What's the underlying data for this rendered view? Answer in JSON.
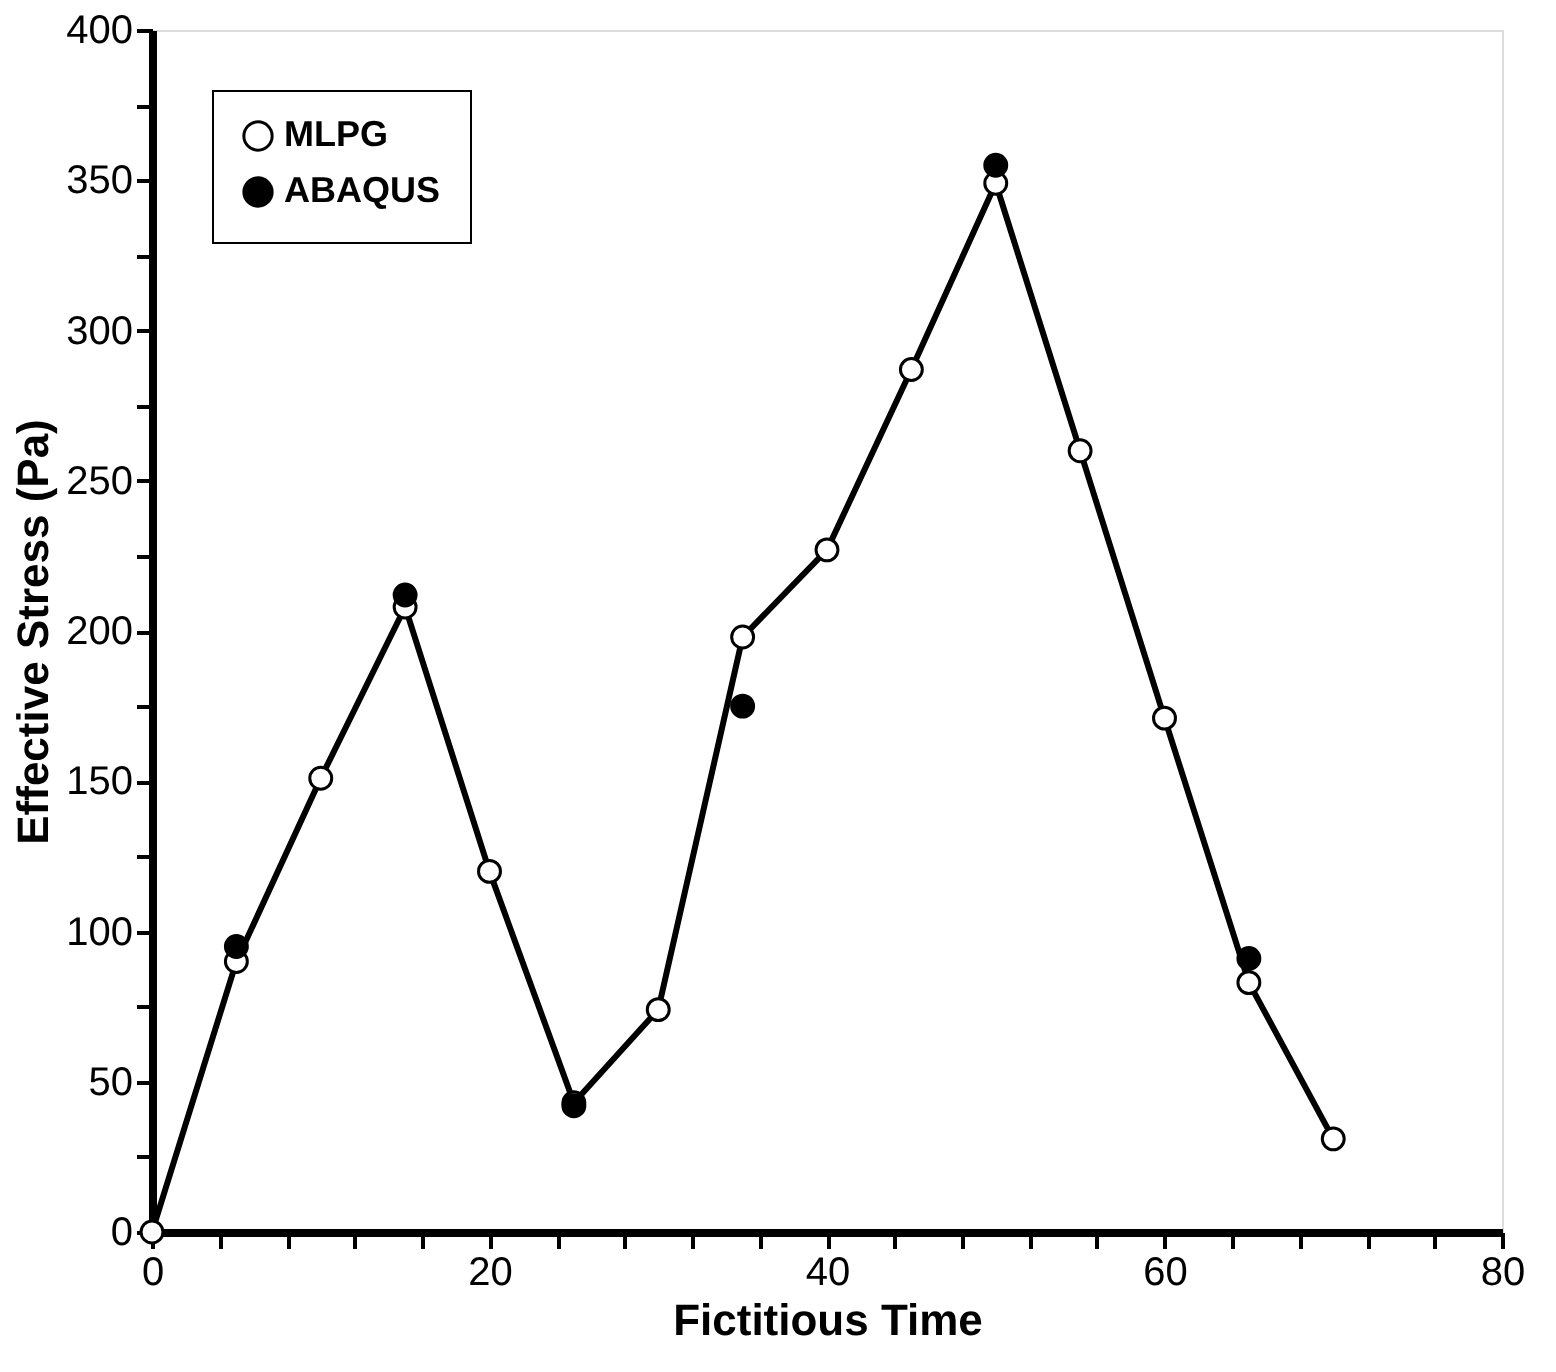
{
  "chart_data": {
    "type": "line",
    "xlabel": "Fictitious Time",
    "ylabel": "Effective Stress (Pa)",
    "xlim": [
      0,
      80
    ],
    "ylim": [
      0,
      400
    ],
    "xticks": [
      0,
      {
        "value": 4,
        "label": null
      },
      {
        "value": 8,
        "label": null
      },
      {
        "value": 12,
        "label": null
      },
      {
        "value": 16,
        "label": null
      },
      20,
      {
        "value": 24,
        "label": null
      },
      {
        "value": 28,
        "label": null
      },
      {
        "value": 32,
        "label": null
      },
      {
        "value": 36,
        "label": null
      },
      40,
      {
        "value": 44,
        "label": null
      },
      {
        "value": 48,
        "label": null
      },
      {
        "value": 52,
        "label": null
      },
      {
        "value": 56,
        "label": null
      },
      60,
      {
        "value": 64,
        "label": null
      },
      {
        "value": 68,
        "label": null
      },
      {
        "value": 72,
        "label": null
      },
      {
        "value": 76,
        "label": null
      },
      80
    ],
    "yticks": [
      0,
      {
        "value": 25,
        "label": null
      },
      50,
      {
        "value": 75,
        "label": null
      },
      100,
      {
        "value": 125,
        "label": null
      },
      150,
      {
        "value": 175,
        "label": null
      },
      200,
      {
        "value": 225,
        "label": null
      },
      250,
      {
        "value": 275,
        "label": null
      },
      300,
      {
        "value": 325,
        "label": null
      },
      350,
      {
        "value": 375,
        "label": null
      },
      400
    ],
    "grid": false,
    "legend": "top left",
    "marker": "circle",
    "line_style": "solid",
    "series": [
      {
        "name": "MLPG",
        "type": "line",
        "color": "#000000",
        "x": [
          0,
          5,
          10,
          15,
          20,
          25,
          30,
          35,
          40,
          45,
          50,
          55,
          60,
          65,
          70
        ],
        "values": [
          0,
          90,
          151,
          208,
          120,
          43,
          74,
          198,
          227,
          287,
          349,
          260,
          171,
          83,
          31
        ]
      },
      {
        "name": "ABAQUS",
        "type": "scatter",
        "color": "#000000",
        "x": [
          5,
          15,
          25,
          35,
          50,
          65
        ],
        "values": [
          95,
          212,
          42,
          175,
          355,
          91
        ]
      }
    ]
  }
}
